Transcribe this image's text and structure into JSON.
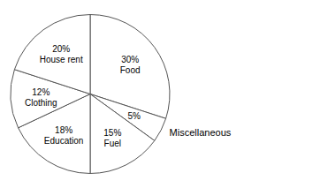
{
  "chart_data": {
    "type": "pie",
    "categories": [
      "Food",
      "Miscellaneous",
      "Fuel",
      "Education",
      "Clothing",
      "House rent"
    ],
    "values": [
      30,
      5,
      15,
      18,
      12,
      20
    ],
    "value_labels": [
      "30%",
      "5%",
      "15%",
      "18%",
      "12%",
      "20%"
    ],
    "data_labels": true,
    "colors": [
      "#ffffff",
      "#ffffff",
      "#ffffff",
      "#ffffff",
      "#ffffff",
      "#ffffff"
    ]
  }
}
